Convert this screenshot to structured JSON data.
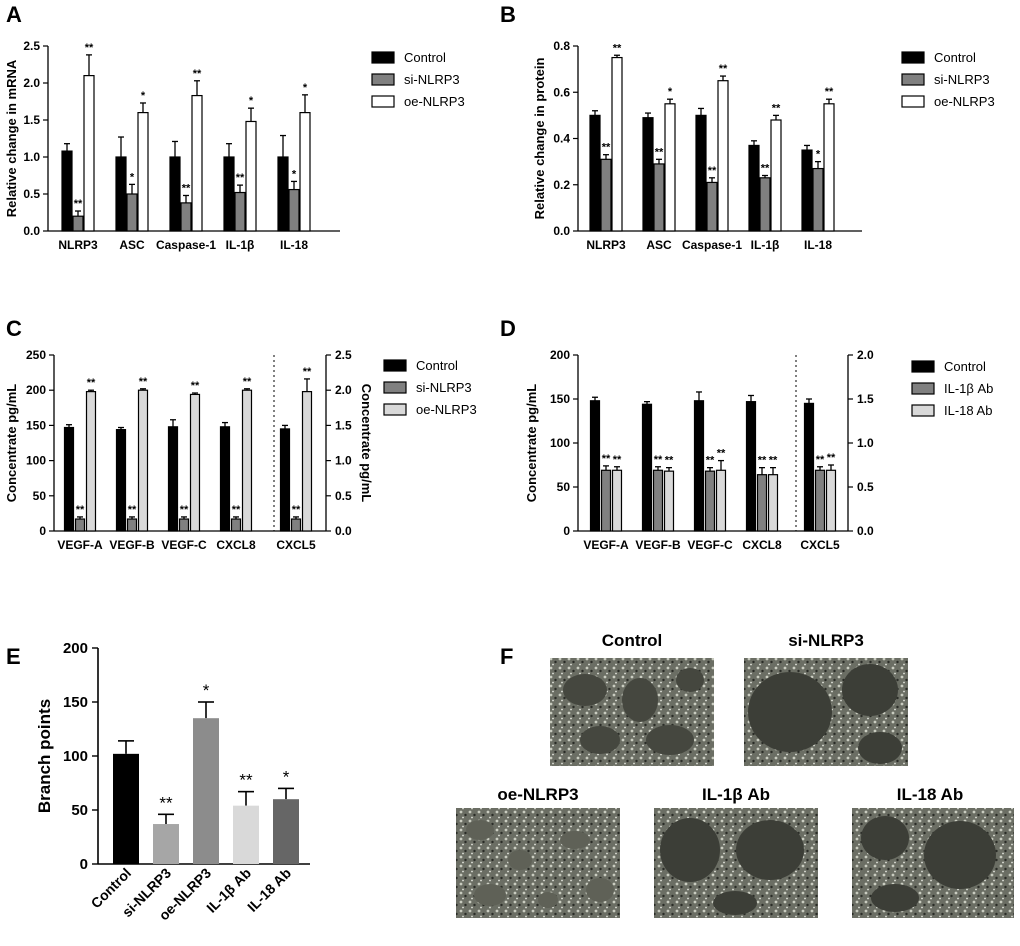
{
  "panels": {
    "A": "A",
    "B": "B",
    "C": "C",
    "D": "D",
    "E": "E",
    "F": "F"
  },
  "colors": {
    "control": "#000000",
    "si": "#808080",
    "oe": "#ffffff",
    "light": "#d9d9d9",
    "E_oe": "#8c8c8c",
    "E_il18": "#666666",
    "E_si": "#a6a6a6"
  },
  "chart_data": [
    {
      "id": "A",
      "type": "bar",
      "ylabel": "Relative change in mRNA",
      "ylim": [
        0,
        2.5
      ],
      "yticks": [
        "0.0",
        "0.5",
        "1.0",
        "1.5",
        "2.0",
        "2.5"
      ],
      "categories": [
        "NLRP3",
        "ASC",
        "Caspase-1",
        "IL-1β",
        "IL-18"
      ],
      "legend": [
        "Control",
        "si-NLRP3",
        "oe-NLRP3"
      ],
      "series": [
        {
          "name": "Control",
          "values": [
            1.08,
            1.0,
            1.0,
            1.0,
            1.0
          ],
          "err": [
            0.1,
            0.27,
            0.21,
            0.18,
            0.29
          ],
          "stars": [
            "",
            "",
            "",
            "",
            ""
          ]
        },
        {
          "name": "si-NLRP3",
          "values": [
            0.2,
            0.5,
            0.38,
            0.52,
            0.56
          ],
          "err": [
            0.07,
            0.13,
            0.1,
            0.1,
            0.11
          ],
          "stars": [
            "**",
            "*",
            "**",
            "**",
            "*"
          ]
        },
        {
          "name": "oe-NLRP3",
          "values": [
            2.1,
            1.6,
            1.83,
            1.48,
            1.6
          ],
          "err": [
            0.28,
            0.13,
            0.2,
            0.18,
            0.24
          ],
          "stars": [
            "**",
            "*",
            "**",
            "*",
            "*"
          ]
        }
      ]
    },
    {
      "id": "B",
      "type": "bar",
      "ylabel": "Relative change in protein",
      "ylim": [
        0,
        0.8
      ],
      "yticks": [
        "0.0",
        "0.2",
        "0.4",
        "0.6",
        "0.8"
      ],
      "categories": [
        "NLRP3",
        "ASC",
        "Caspase-1",
        "IL-1β",
        "IL-18"
      ],
      "legend": [
        "Control",
        "si-NLRP3",
        "oe-NLRP3"
      ],
      "series": [
        {
          "name": "Control",
          "values": [
            0.5,
            0.49,
            0.5,
            0.37,
            0.35
          ],
          "err": [
            0.02,
            0.02,
            0.03,
            0.02,
            0.02
          ],
          "stars": [
            "",
            "",
            "",
            "",
            ""
          ]
        },
        {
          "name": "si-NLRP3",
          "values": [
            0.31,
            0.29,
            0.21,
            0.23,
            0.27
          ],
          "err": [
            0.02,
            0.02,
            0.02,
            0.01,
            0.03
          ],
          "stars": [
            "**",
            "**",
            "**",
            "**",
            "*"
          ]
        },
        {
          "name": "oe-NLRP3",
          "values": [
            0.75,
            0.55,
            0.65,
            0.48,
            0.55
          ],
          "err": [
            0.01,
            0.02,
            0.02,
            0.02,
            0.02
          ],
          "stars": [
            "**",
            "*",
            "**",
            "**",
            "**"
          ]
        }
      ]
    },
    {
      "id": "C",
      "type": "bar",
      "ylabel": "Concentrate pg/mL",
      "ylabel_right": "Concentrate pg/mL",
      "ylim": [
        0,
        250
      ],
      "ylim_right": [
        0,
        2.5
      ],
      "yticks": [
        "0",
        "50",
        "100",
        "150",
        "200",
        "250"
      ],
      "yticks_right": [
        "0.0",
        "0.5",
        "1.0",
        "1.5",
        "2.0",
        "2.5"
      ],
      "categories": [
        "VEGF-A",
        "VEGF-B",
        "VEGF-C",
        "CXCL8",
        "CXCL5"
      ],
      "right_axis_categories": [
        4
      ],
      "legend": [
        "Control",
        "si-NLRP3",
        "oe-NLRP3"
      ],
      "series": [
        {
          "name": "Control",
          "values": [
            147,
            144,
            148,
            148,
            1.45
          ],
          "err": [
            4,
            3,
            10,
            6,
            0.05
          ],
          "stars": [
            "",
            "",
            "",
            "",
            ""
          ]
        },
        {
          "name": "si-NLRP3",
          "values": [
            17,
            17,
            17,
            17,
            0.17
          ],
          "err": [
            3,
            3,
            3,
            3,
            0.03
          ],
          "stars": [
            "**",
            "**",
            "**",
            "**",
            "**"
          ]
        },
        {
          "name": "oe-NLRP3",
          "values": [
            198,
            200,
            194,
            200,
            1.98
          ],
          "err": [
            2,
            2,
            2,
            2,
            0.18
          ],
          "stars": [
            "**",
            "**",
            "**",
            "**",
            "**"
          ]
        }
      ]
    },
    {
      "id": "D",
      "type": "bar",
      "ylabel": "Concentrate pg/mL",
      "ylim": [
        0,
        200
      ],
      "ylim_right": [
        0,
        2.0
      ],
      "yticks": [
        "0",
        "50",
        "100",
        "150",
        "200"
      ],
      "yticks_right": [
        "0.0",
        "0.5",
        "1.0",
        "1.5",
        "2.0"
      ],
      "categories": [
        "VEGF-A",
        "VEGF-B",
        "VEGF-C",
        "CXCL8",
        "CXCL5"
      ],
      "right_axis_categories": [
        4
      ],
      "legend": [
        "Control",
        "IL-1β Ab",
        "IL-18 Ab"
      ],
      "series": [
        {
          "name": "Control",
          "values": [
            148,
            144,
            148,
            147,
            1.45
          ],
          "err": [
            4,
            3,
            10,
            7,
            0.05
          ],
          "stars": [
            "",
            "",
            "",
            "",
            ""
          ]
        },
        {
          "name": "IL-1β Ab",
          "values": [
            69,
            69,
            68,
            64,
            0.69
          ],
          "err": [
            5,
            4,
            4,
            8,
            0.04
          ],
          "stars": [
            "**",
            "**",
            "**",
            "**",
            "**"
          ]
        },
        {
          "name": "IL-18 Ab",
          "values": [
            69,
            68,
            69,
            64,
            0.69
          ],
          "err": [
            4,
            4,
            11,
            8,
            0.06
          ],
          "stars": [
            "**",
            "**",
            "**",
            "**",
            "**"
          ]
        }
      ]
    },
    {
      "id": "E",
      "type": "bar",
      "ylabel": "Branch points",
      "ylim": [
        0,
        200
      ],
      "yticks": [
        "0",
        "50",
        "100",
        "150",
        "200"
      ],
      "categories": [
        "Control",
        "si-NLRP3",
        "oe-NLRP3",
        "IL-1β Ab",
        "IL-18 Ab"
      ],
      "values": [
        102,
        37,
        135,
        54,
        60
      ],
      "err": [
        12,
        9,
        15,
        13,
        10
      ],
      "stars": [
        "",
        "**",
        "*",
        "**",
        "*"
      ]
    }
  ],
  "micrographs": [
    {
      "label": "Control"
    },
    {
      "label": "si-NLRP3"
    },
    {
      "label": "oe-NLRP3"
    },
    {
      "label": "IL-1β Ab"
    },
    {
      "label": "IL-18 Ab"
    }
  ]
}
